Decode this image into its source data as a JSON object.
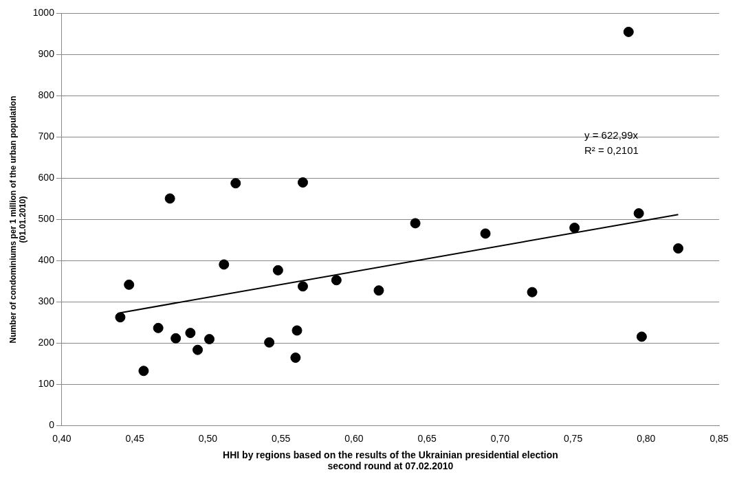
{
  "chart_data": {
    "type": "scatter",
    "xlabel": "HHI by regions based on the results of the Ukrainian presidential election second round at 07.02.2010",
    "ylabel": "Number of condominiums per 1 million of the urban population (01.01.2010)",
    "annotations": [
      "y = 622,99x",
      "R² = 0,2101"
    ],
    "xlim": [
      0.4,
      0.85
    ],
    "xticks": [
      {
        "value": 0.4,
        "label": "0,40"
      },
      {
        "value": 0.45,
        "label": "0,45"
      },
      {
        "value": 0.5,
        "label": "0,50"
      },
      {
        "value": 0.55,
        "label": "0,55"
      },
      {
        "value": 0.6,
        "label": "0,60"
      },
      {
        "value": 0.65,
        "label": "0,65"
      },
      {
        "value": 0.7,
        "label": "0,70"
      },
      {
        "value": 0.75,
        "label": "0,75"
      },
      {
        "value": 0.8,
        "label": "0,80"
      },
      {
        "value": 0.85,
        "label": "0,85"
      }
    ],
    "ylim": [
      0,
      1000
    ],
    "yticks": [
      0,
      100,
      200,
      300,
      400,
      500,
      600,
      700,
      800,
      900,
      1000
    ],
    "grid": "y",
    "legend": false,
    "series": [
      {
        "color": "#000000",
        "marker": "circle",
        "x": [
          0.44,
          0.446,
          0.456,
          0.466,
          0.474,
          0.478,
          0.488,
          0.493,
          0.501,
          0.511,
          0.519,
          0.542,
          0.548,
          0.56,
          0.561,
          0.565,
          0.565,
          0.588,
          0.617,
          0.642,
          0.69,
          0.722,
          0.751,
          0.788,
          0.795,
          0.797,
          0.822
        ],
        "values": [
          263,
          342,
          133,
          237,
          551,
          212,
          225,
          184,
          210,
          391,
          588,
          202,
          377,
          165,
          231,
          590,
          338,
          353,
          328,
          491,
          466,
          324,
          480,
          955,
          515,
          216,
          430
        ]
      },
      {
        "type": "line",
        "color": "#000000",
        "marker": "none",
        "x": [
          0.44,
          0.822
        ],
        "values": [
          274,
          512
        ]
      }
    ]
  }
}
